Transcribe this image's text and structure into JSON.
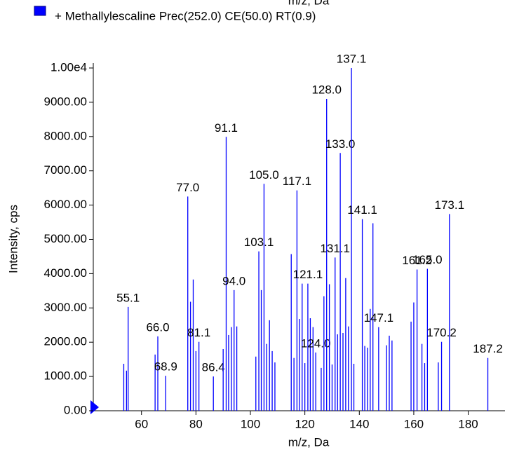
{
  "chart_data": {
    "type": "stick",
    "top_label": "m/z, Da",
    "xlabel": "m/z, Da",
    "ylabel": "Intensity, cps",
    "xlim": [
      42.3,
      193.5
    ],
    "ylim": [
      0,
      10000
    ],
    "xticks": [
      60,
      80,
      100,
      120,
      140,
      160,
      180
    ],
    "yticks": [
      {
        "value": 0,
        "label": "0.00"
      },
      {
        "value": 1000,
        "label": "1000.00"
      },
      {
        "value": 2000,
        "label": "2000.00"
      },
      {
        "value": 3000,
        "label": "3000.00"
      },
      {
        "value": 4000,
        "label": "4000.00"
      },
      {
        "value": 5000,
        "label": "5000.00"
      },
      {
        "value": 6000,
        "label": "6000.00"
      },
      {
        "value": 7000,
        "label": "7000.00"
      },
      {
        "value": 8000,
        "label": "8000.00"
      },
      {
        "value": 9000,
        "label": "9000.00"
      },
      {
        "value": 10000,
        "label": "1.00e4"
      }
    ],
    "series": [
      {
        "name": "+ Methallylescaline Prec(252.0) CE(50.0) RT(0.9)",
        "color": "#0000ff",
        "x": [
          53.5,
          54.5,
          55.1,
          65,
          66.0,
          68.9,
          77.0,
          78,
          79,
          80,
          81.1,
          86.4,
          90,
          91.1,
          92,
          93,
          94.0,
          95,
          102,
          103.1,
          104,
          105.0,
          106,
          107,
          108,
          109,
          115,
          116,
          117.1,
          118,
          119,
          120,
          121.1,
          122,
          123,
          124.0,
          126,
          127,
          128.0,
          129,
          130,
          131.1,
          132,
          133.0,
          134,
          135,
          136,
          137.1,
          138,
          141.1,
          142,
          143,
          144,
          145,
          147.1,
          150,
          151,
          152,
          159,
          160,
          161.2,
          163,
          164,
          165.0,
          169,
          170.2,
          173.1,
          187.2
        ],
        "values": [
          1370,
          1170,
          3030,
          1640,
          2170,
          1020,
          6250,
          3180,
          3830,
          1740,
          2010,
          1000,
          1800,
          7990,
          2210,
          2440,
          3520,
          2460,
          1580,
          4650,
          3520,
          6620,
          1950,
          2640,
          1740,
          1410,
          4570,
          1540,
          6430,
          2680,
          3710,
          1390,
          3710,
          2700,
          2440,
          1700,
          1250,
          3340,
          9100,
          3690,
          1350,
          4470,
          2230,
          7520,
          2270,
          3870,
          2460,
          10000,
          1370,
          5590,
          1890,
          1840,
          2970,
          5470,
          2440,
          1910,
          2190,
          2050,
          2600,
          3160,
          4120,
          1950,
          1390,
          4140,
          1410,
          2010,
          5740,
          1540
        ],
        "x_labels": [
          null,
          null,
          "55.1",
          null,
          "66.0",
          "68.9",
          "77.0",
          null,
          null,
          null,
          "81.1",
          "86.4",
          null,
          "91.1",
          null,
          null,
          "94.0",
          null,
          null,
          "103.1",
          null,
          "105.0",
          null,
          null,
          null,
          null,
          null,
          null,
          "117.1",
          null,
          null,
          null,
          "121.1",
          null,
          null,
          "124.0",
          null,
          null,
          "128.0",
          null,
          null,
          "131.1",
          null,
          "133.0",
          null,
          null,
          null,
          "137.1",
          null,
          "141.1",
          null,
          null,
          null,
          null,
          "147.1",
          null,
          null,
          null,
          null,
          null,
          "161.2",
          null,
          null,
          "165.0",
          null,
          "170.2",
          "173.1",
          "187.2"
        ]
      }
    ]
  }
}
